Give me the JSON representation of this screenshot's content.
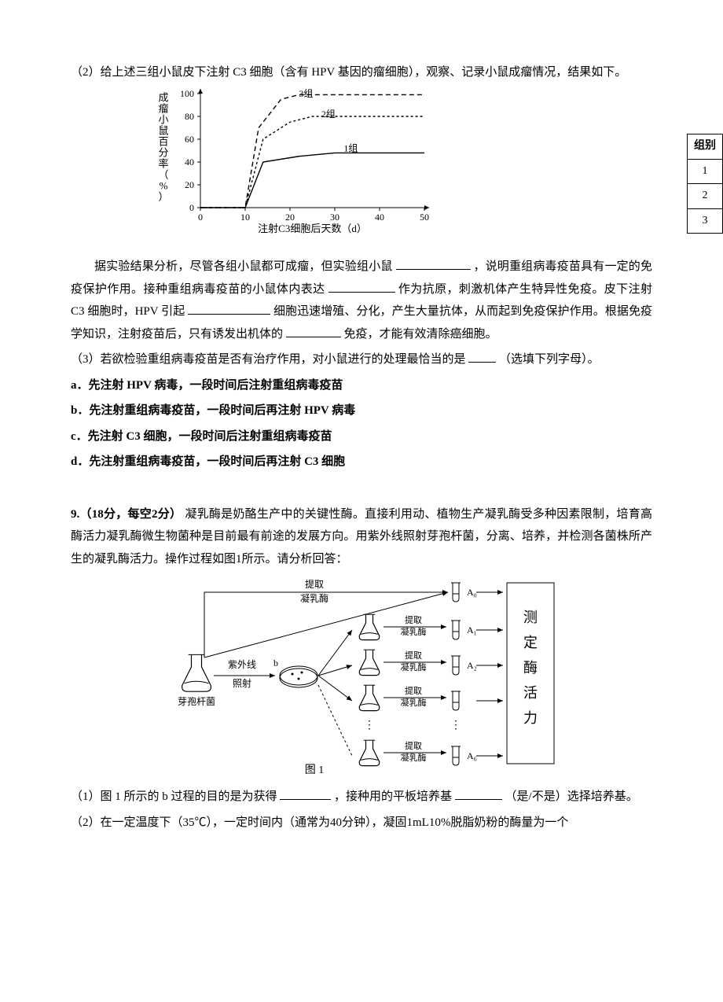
{
  "q2": {
    "intro_part1": "（2）给上述三组小鼠皮下注射 C3 细胞（含有 HPV 基因的瘤细胞），观察、记录小鼠成瘤情况，结果如下。",
    "analysis_a": "据实验结果分析，尽管各组小鼠都可成瘤，但实验组小鼠",
    "analysis_b": "，说明重组病毒疫苗具有一定的免疫保护作用。接种重组病毒疫苗的小鼠体内表达",
    "analysis_c": "作为抗原，刺激机体产生特异性免疫。皮下注射 C3 细胞时，HPV 引起",
    "analysis_d": "细胞迅速增殖、分化，产生大量抗体，从而起到免疫保护作用。根据免疫学知识，注射疫苗后，只有诱发出机体的",
    "analysis_e": "免疫，才能有效清除癌细胞。",
    "q3_stem": "（3）若欲检验重组病毒疫苗是否有治疗作用，对小鼠进行的处理最恰当的是",
    "q3_tail": "（选填下列字母）。",
    "opts": {
      "a": "a．先注射 HPV 病毒，一段时间后注射重组病毒疫苗",
      "b": "b．先注射重组病毒疫苗，一段时间后再注射 HPV 病毒",
      "c": "c．先注射 C3 细胞，一段时间后注射重组病毒疫苗",
      "d": "d．先注射重组病毒疫苗，一段时间后再注射 C3 细胞"
    }
  },
  "chart": {
    "y_label": "成瘤小鼠百分率（%）",
    "x_label": "注射C3细胞后天数（d）",
    "x_ticks": [
      0,
      10,
      20,
      30,
      40,
      50
    ],
    "y_ticks": [
      0,
      20,
      40,
      60,
      80,
      100
    ],
    "series": [
      {
        "name": "1组",
        "dash": "",
        "label_x": 32,
        "label_y": 52,
        "points": [
          [
            0,
            0
          ],
          [
            10,
            0
          ],
          [
            14,
            40
          ],
          [
            22,
            45
          ],
          [
            30,
            48
          ],
          [
            50,
            48
          ]
        ]
      },
      {
        "name": "2组",
        "dash": "3,3",
        "label_x": 27,
        "label_y": 82,
        "points": [
          [
            0,
            0
          ],
          [
            10,
            0
          ],
          [
            14,
            60
          ],
          [
            20,
            75
          ],
          [
            25,
            80
          ],
          [
            50,
            80
          ]
        ]
      },
      {
        "name": "3组",
        "dash": "6,4",
        "label_x": 22,
        "label_y": 100,
        "points": [
          [
            0,
            0
          ],
          [
            10,
            0
          ],
          [
            13,
            70
          ],
          [
            18,
            95
          ],
          [
            22,
            99
          ],
          [
            50,
            99
          ]
        ]
      }
    ],
    "axis_color": "#000000",
    "grid_none": true,
    "font_size": 12
  },
  "side_table": {
    "header": "组别",
    "rows": [
      "1",
      "2",
      "3"
    ]
  },
  "q9": {
    "stem_prefix": "9.（18分，每空2分）",
    "stem_body": "凝乳酶是奶酪生产中的关键性酶。直接利用动、植物生产凝乳酶受多种因素限制，培育高酶活力凝乳酶微生物菌种是目前最有前途的发展方向。用紫外线照射芽孢杆菌，分离、培养，并检测各菌株所产生的凝乳酶活力。操作过程如图1所示。请分析回答：",
    "sub1_a": "（1）图 1 所示的 b 过程的目的是为获得",
    "sub1_b": "，接种用的平板培养基",
    "sub1_c": "（是/不是）选择培养基。",
    "sub2": "（2）在一定温度下（35℃），一定时间内（通常为40分钟），凝固1mL10%脱脂奶粉的酶量为一个"
  },
  "diagram": {
    "top_label": "提取",
    "top_label2": "凝乳酶",
    "uv1": "紫外线",
    "uv2": "照射",
    "b_label": "b",
    "flask_label": "芽孢杆菌",
    "extract": "提取",
    "enzyme": "凝乳酶",
    "tubes": [
      "A₀",
      "A₁",
      "A₂",
      "A₆"
    ],
    "box1": "测",
    "box2": "定",
    "box3": "酶",
    "box4": "活",
    "box5": "力",
    "fig_label": "图 1"
  }
}
